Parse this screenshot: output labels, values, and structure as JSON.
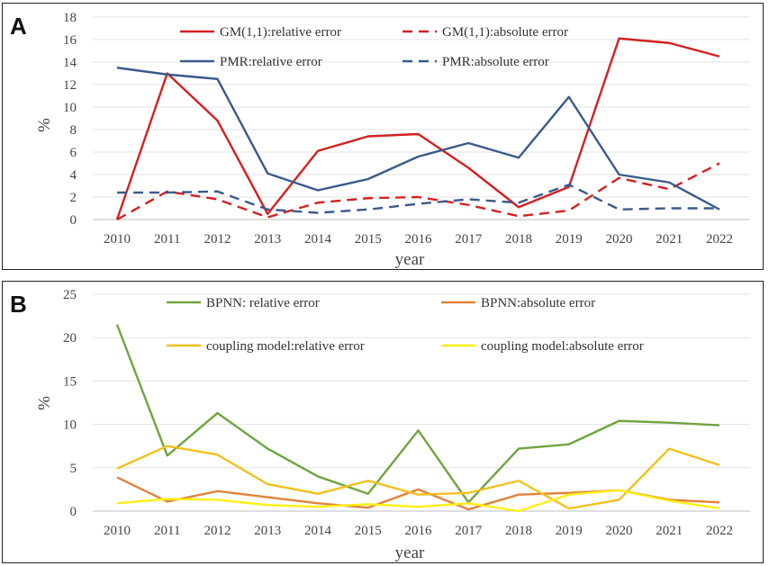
{
  "chart_data": [
    {
      "panel": "A",
      "type": "line",
      "ylabel": "%",
      "xlabel": "year",
      "ylim": [
        0,
        18
      ],
      "yticks": [
        0,
        2,
        4,
        6,
        8,
        10,
        12,
        14,
        16,
        18
      ],
      "categories": [
        "2010",
        "2011",
        "2012",
        "2013",
        "2014",
        "2015",
        "2016",
        "2017",
        "2018",
        "2019",
        "2020",
        "2021",
        "2022"
      ],
      "legend_position": "top",
      "series": [
        {
          "name": "GM(1,1):relative error",
          "color": "#d42020",
          "dash": "solid",
          "values": [
            0,
            13.0,
            8.8,
            0.5,
            6.1,
            7.4,
            7.6,
            4.6,
            1.1,
            2.9,
            16.1,
            15.7,
            14.5
          ]
        },
        {
          "name": "GM(1,1):absolute error",
          "color": "#d42020",
          "dash": "dashed",
          "values": [
            0,
            2.5,
            1.8,
            0.2,
            1.5,
            1.9,
            2.0,
            1.3,
            0.3,
            0.8,
            3.7,
            2.7,
            5.0
          ]
        },
        {
          "name": "PMR:relative error",
          "color": "#3a5a8c",
          "dash": "solid",
          "values": [
            13.5,
            12.9,
            12.5,
            4.1,
            2.6,
            3.6,
            5.6,
            6.8,
            5.5,
            10.9,
            4.0,
            3.3,
            0.9
          ]
        },
        {
          "name": "PMR:absolute error",
          "color": "#3a5a8c",
          "dash": "dashed",
          "values": [
            2.4,
            2.4,
            2.5,
            0.9,
            0.6,
            0.9,
            1.4,
            1.8,
            1.5,
            3.1,
            0.9,
            1.0,
            1.0
          ]
        }
      ]
    },
    {
      "panel": "B",
      "type": "line",
      "ylabel": "%",
      "xlabel": "year",
      "ylim": [
        0,
        25
      ],
      "yticks": [
        0,
        5,
        10,
        15,
        20,
        25
      ],
      "categories": [
        "2010",
        "2011",
        "2012",
        "2013",
        "2014",
        "2015",
        "2016",
        "2017",
        "2018",
        "2019",
        "2020",
        "2021",
        "2022"
      ],
      "legend_position": "top",
      "series": [
        {
          "name": "BPNN:  relative error",
          "color": "#6fa53f",
          "dash": "solid",
          "values": [
            21.5,
            6.4,
            11.3,
            7.2,
            4.0,
            2.0,
            9.3,
            1.0,
            7.2,
            7.7,
            10.4,
            10.2,
            9.9
          ]
        },
        {
          "name": "BPNN:absolute error",
          "color": "#e3823a",
          "dash": "solid",
          "values": [
            3.9,
            1.1,
            2.3,
            1.6,
            0.9,
            0.4,
            2.5,
            0.2,
            1.9,
            2.1,
            2.4,
            1.3,
            1.0
          ]
        },
        {
          "name": "coupling model:relative error",
          "color": "#f2c01e",
          "dash": "solid",
          "values": [
            4.9,
            7.5,
            6.5,
            3.1,
            2.0,
            3.5,
            1.9,
            2.1,
            3.5,
            0.3,
            1.3,
            7.2,
            5.3
          ]
        },
        {
          "name": "coupling model:absolute error",
          "color": "#ffef14",
          "dash": "solid",
          "values": [
            0.9,
            1.4,
            1.3,
            0.7,
            0.5,
            0.8,
            0.5,
            0.9,
            0.0,
            1.9,
            2.4,
            1.2,
            0.3
          ]
        }
      ]
    }
  ]
}
